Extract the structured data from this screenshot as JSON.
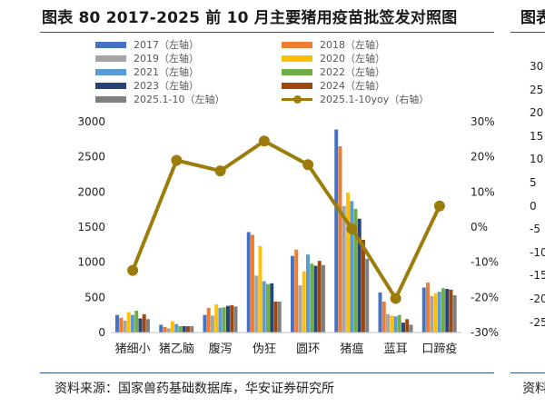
{
  "title": "图表 80 2017-2025 前 10 月主要猪用疫苗批签发对照图",
  "next_panel": {
    "title_fragment": "图表",
    "tick_fragments": [
      "30",
      "25",
      "20",
      "15",
      "10",
      "5",
      "0",
      "-5",
      "-10",
      "-15",
      "-20",
      "-25"
    ],
    "source_fragment": "资料"
  },
  "source": "资料来源：国家兽药基础数据库，华安证券研究所",
  "colors": {
    "2017": "#4472c4",
    "2018": "#ed7d31",
    "2019": "#a5a5a5",
    "2020": "#ffc000",
    "2021": "#5b9bd5",
    "2022": "#70ad47",
    "2023": "#264478",
    "2024": "#9e480e",
    "2025.1-10": "#7f7f7f",
    "yoy_line": "#9c7d0b",
    "title_rule": "#2f5597"
  },
  "chart_data": {
    "type": "bar",
    "categories": [
      "猪细小",
      "猪乙脑",
      "腹泻",
      "伪狂",
      "圆环",
      "猪瘟",
      "蓝耳",
      "口蹄疫"
    ],
    "series": [
      {
        "name": "2017（左轴）",
        "key": "2017",
        "values": [
          250,
          110,
          250,
          1430,
          1090,
          2890,
          570,
          640
        ]
      },
      {
        "name": "2018（左轴）",
        "key": "2018",
        "values": [
          210,
          80,
          350,
          1390,
          1180,
          2650,
          440,
          710
        ]
      },
      {
        "name": "2019（左轴）",
        "key": "2019",
        "values": [
          170,
          60,
          240,
          810,
          670,
          1800,
          260,
          520
        ]
      },
      {
        "name": "2020（左轴）",
        "key": "2020",
        "values": [
          290,
          160,
          400,
          1230,
          870,
          1990,
          240,
          560
        ]
      },
      {
        "name": "2021（左轴）",
        "key": "2021",
        "values": [
          250,
          120,
          350,
          730,
          1110,
          1870,
          230,
          580
        ]
      },
      {
        "name": "2022（左轴）",
        "key": "2022",
        "values": [
          310,
          90,
          360,
          690,
          980,
          1760,
          250,
          630
        ]
      },
      {
        "name": "2023（左轴）",
        "key": "2023",
        "values": [
          200,
          90,
          380,
          700,
          950,
          1620,
          140,
          620
        ]
      },
      {
        "name": "2024（左轴）",
        "key": "2024",
        "values": [
          260,
          90,
          390,
          440,
          1020,
          1320,
          190,
          610
        ]
      },
      {
        "name": "2025.1-10（左轴）",
        "key": "2025.1-10",
        "values": [
          190,
          90,
          370,
          440,
          960,
          1050,
          110,
          530
        ]
      }
    ],
    "line_series": {
      "name": "2025.1-10yoy（右轴）",
      "values": [
        -12.3,
        19.0,
        16.0,
        24.5,
        17.8,
        -0.5,
        -20.3,
        6.0
      ]
    },
    "y_left": {
      "min": 0,
      "max": 3000,
      "ticks": [
        "0",
        "500",
        "1000",
        "1500",
        "2000",
        "2500",
        "3000"
      ]
    },
    "y_right": {
      "min": -30,
      "max": 30,
      "ticks": [
        "-30%",
        "-20%",
        "-10%",
        "0%",
        "10%",
        "20%",
        "30%"
      ]
    },
    "xlabel": "",
    "ylabel": "",
    "legend_position": "top"
  }
}
